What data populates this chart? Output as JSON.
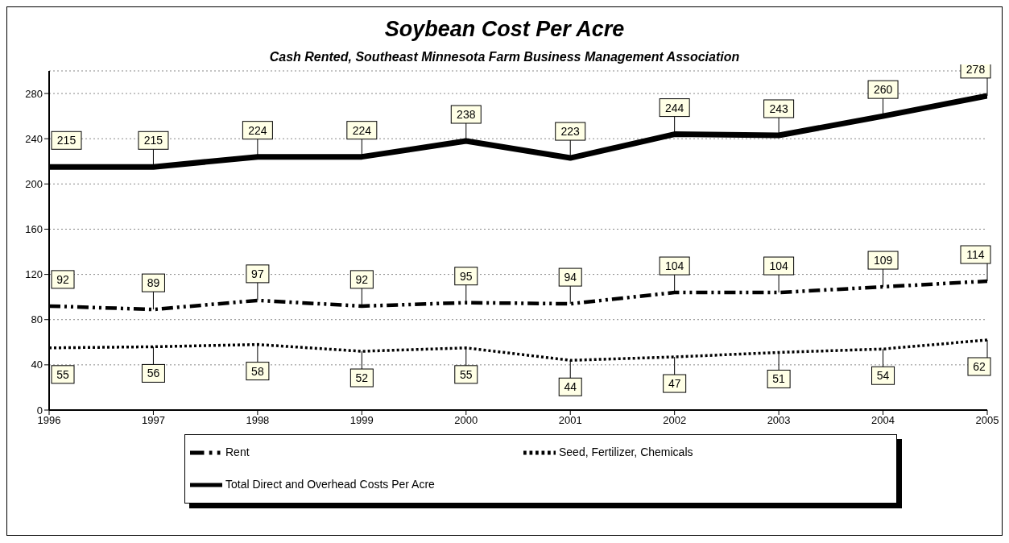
{
  "chart_data": {
    "type": "line",
    "title": "Soybean Cost Per Acre",
    "subtitle": "Cash Rented, Southeast Minnesota Farm Business Management Association",
    "x": [
      1996,
      1997,
      1998,
      1999,
      2000,
      2001,
      2002,
      2003,
      2004,
      2005
    ],
    "xlim": [
      1996,
      2005
    ],
    "xticks": [
      1996,
      1997,
      1998,
      1999,
      2000,
      2001,
      2002,
      2003,
      2004,
      2005
    ],
    "ylim": [
      0,
      300
    ],
    "yticks": [
      0,
      40,
      80,
      120,
      160,
      200,
      240,
      280
    ],
    "series": [
      {
        "name": "Seed, Fertilizer, Chemicals",
        "color": "#000000",
        "line_style": "dotted",
        "values": [
          55,
          56,
          58,
          52,
          55,
          44,
          47,
          51,
          54,
          62
        ]
      },
      {
        "name": "Rent",
        "color": "#000000",
        "line_style": "dashed",
        "values": [
          92,
          89,
          97,
          92,
          95,
          94,
          104,
          104,
          109,
          114
        ]
      },
      {
        "name": "Total Direct and Overhead Costs Per Acre",
        "color": "#000000",
        "line_style": "solid",
        "values": [
          215,
          215,
          224,
          224,
          238,
          223,
          244,
          243,
          260,
          278
        ]
      }
    ],
    "grid": "y",
    "legend": "bottom",
    "marker": "none",
    "data_labels": true
  }
}
